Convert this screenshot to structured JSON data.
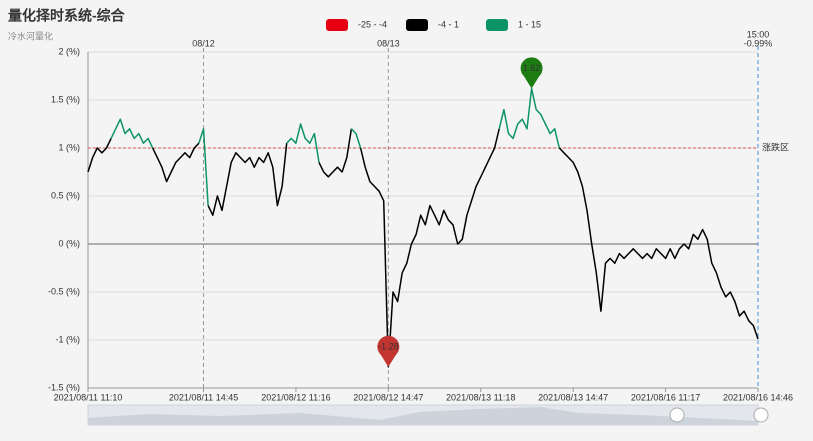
{
  "chart_data": {
    "type": "line",
    "title": "量化择时系统-综合",
    "subtitle": "冷水河量化",
    "categories": [
      "2021/08/11 11:10",
      null,
      null,
      null,
      null,
      null,
      null,
      null,
      null,
      null,
      null,
      null,
      null,
      null,
      null,
      null,
      null,
      null,
      null,
      null,
      null,
      null,
      null,
      null,
      null,
      "2021/08/11 14:45",
      null,
      null,
      null,
      null,
      null,
      null,
      null,
      null,
      null,
      null,
      null,
      null,
      null,
      null,
      null,
      null,
      null,
      null,
      null,
      "2021/08/12 11:16",
      null,
      null,
      null,
      null,
      null,
      null,
      null,
      null,
      null,
      null,
      null,
      null,
      null,
      null,
      null,
      null,
      null,
      null,
      null,
      "2021/08/12 14:47",
      null,
      null,
      null,
      null,
      null,
      null,
      null,
      null,
      null,
      null,
      null,
      null,
      null,
      null,
      null,
      null,
      null,
      null,
      null,
      "2021/08/13 11:18",
      null,
      null,
      null,
      null,
      null,
      null,
      null,
      null,
      null,
      null,
      null,
      null,
      null,
      null,
      null,
      null,
      null,
      null,
      null,
      "2021/08/13 14:47",
      null,
      null,
      null,
      null,
      null,
      null,
      null,
      null,
      null,
      null,
      null,
      null,
      null,
      null,
      null,
      null,
      null,
      null,
      null,
      "2021/08/16 11:17",
      null,
      null,
      null,
      null,
      null,
      null,
      null,
      null,
      null,
      null,
      null,
      null,
      null,
      null,
      null,
      null,
      null,
      null,
      null,
      "2021/08/16 14:46"
    ],
    "series": [
      {
        "values": [
          0.75,
          0.9,
          1.0,
          0.95,
          1.0,
          1.1,
          1.2,
          1.3,
          1.15,
          1.2,
          1.1,
          1.15,
          1.05,
          1.1,
          1.0,
          0.9,
          0.8,
          0.65,
          0.75,
          0.85,
          0.9,
          0.95,
          0.9,
          1.0,
          1.05,
          1.2,
          0.4,
          0.3,
          0.5,
          0.35,
          0.6,
          0.85,
          0.95,
          0.9,
          0.85,
          0.9,
          0.8,
          0.9,
          0.85,
          0.95,
          0.8,
          0.4,
          0.6,
          1.05,
          1.1,
          1.05,
          1.25,
          1.1,
          1.05,
          1.15,
          0.85,
          0.75,
          0.7,
          0.75,
          0.8,
          0.75,
          0.9,
          1.2,
          1.15,
          1.0,
          0.8,
          0.65,
          0.6,
          0.55,
          0.45,
          -1.28,
          -0.5,
          -0.6,
          -0.3,
          -0.2,
          0.0,
          0.1,
          0.3,
          0.2,
          0.4,
          0.3,
          0.2,
          0.35,
          0.25,
          0.2,
          0.0,
          0.05,
          0.3,
          0.45,
          0.6,
          0.7,
          0.8,
          0.9,
          1.0,
          1.2,
          1.4,
          1.15,
          1.1,
          1.25,
          1.3,
          1.2,
          1.62,
          1.4,
          1.35,
          1.25,
          1.15,
          1.2,
          1.0,
          0.95,
          0.9,
          0.85,
          0.75,
          0.6,
          0.35,
          0.0,
          -0.3,
          -0.7,
          -0.2,
          -0.15,
          -0.2,
          -0.1,
          -0.15,
          -0.1,
          -0.05,
          -0.1,
          -0.15,
          -0.1,
          -0.15,
          -0.05,
          -0.1,
          -0.15,
          -0.05,
          -0.15,
          -0.05,
          0.0,
          -0.05,
          0.1,
          0.05,
          0.15,
          0.05,
          -0.2,
          -0.3,
          -0.45,
          -0.55,
          -0.5,
          -0.6,
          -0.75,
          -0.7,
          -0.8,
          -0.85,
          -0.99
        ]
      }
    ],
    "pieces": [
      {
        "min": -25,
        "max": -4,
        "label": "-25 - -4",
        "color": "#e60012"
      },
      {
        "min": -4,
        "max": 1,
        "label": "-4 - 1",
        "color": "#000000"
      },
      {
        "min": 1,
        "max": 15,
        "label": "1 - 15",
        "color": "#0c9467"
      }
    ],
    "ylim": [
      -1.5,
      2
    ],
    "yticks": [
      {
        "value": -1.5,
        "label": "-1.5 (%)"
      },
      {
        "value": -1,
        "label": "-1 (%)"
      },
      {
        "value": -0.5,
        "label": "-0.5 (%)"
      },
      {
        "value": 0,
        "label": "0 (%)"
      },
      {
        "value": 0.5,
        "label": "0.5 (%)"
      },
      {
        "value": 1,
        "label": "1 (%)"
      },
      {
        "value": 1.5,
        "label": "1.5 (%)"
      },
      {
        "value": 2,
        "label": "2 (%)"
      }
    ],
    "grid": true,
    "threshold": {
      "value": 1,
      "label": "涨跌区",
      "color": "#d9534f"
    },
    "day_marks": [
      {
        "at": "2021/08/11 14:45",
        "label": "08/12"
      },
      {
        "at": "2021/08/12 14:47",
        "label": "08/13"
      }
    ],
    "end_mark": {
      "at": "2021/08/16 14:46",
      "label": "15:00",
      "value_label": "-0.99%"
    },
    "max_pin_color": "#1e7d12",
    "min_pin_color": "#c23531"
  }
}
